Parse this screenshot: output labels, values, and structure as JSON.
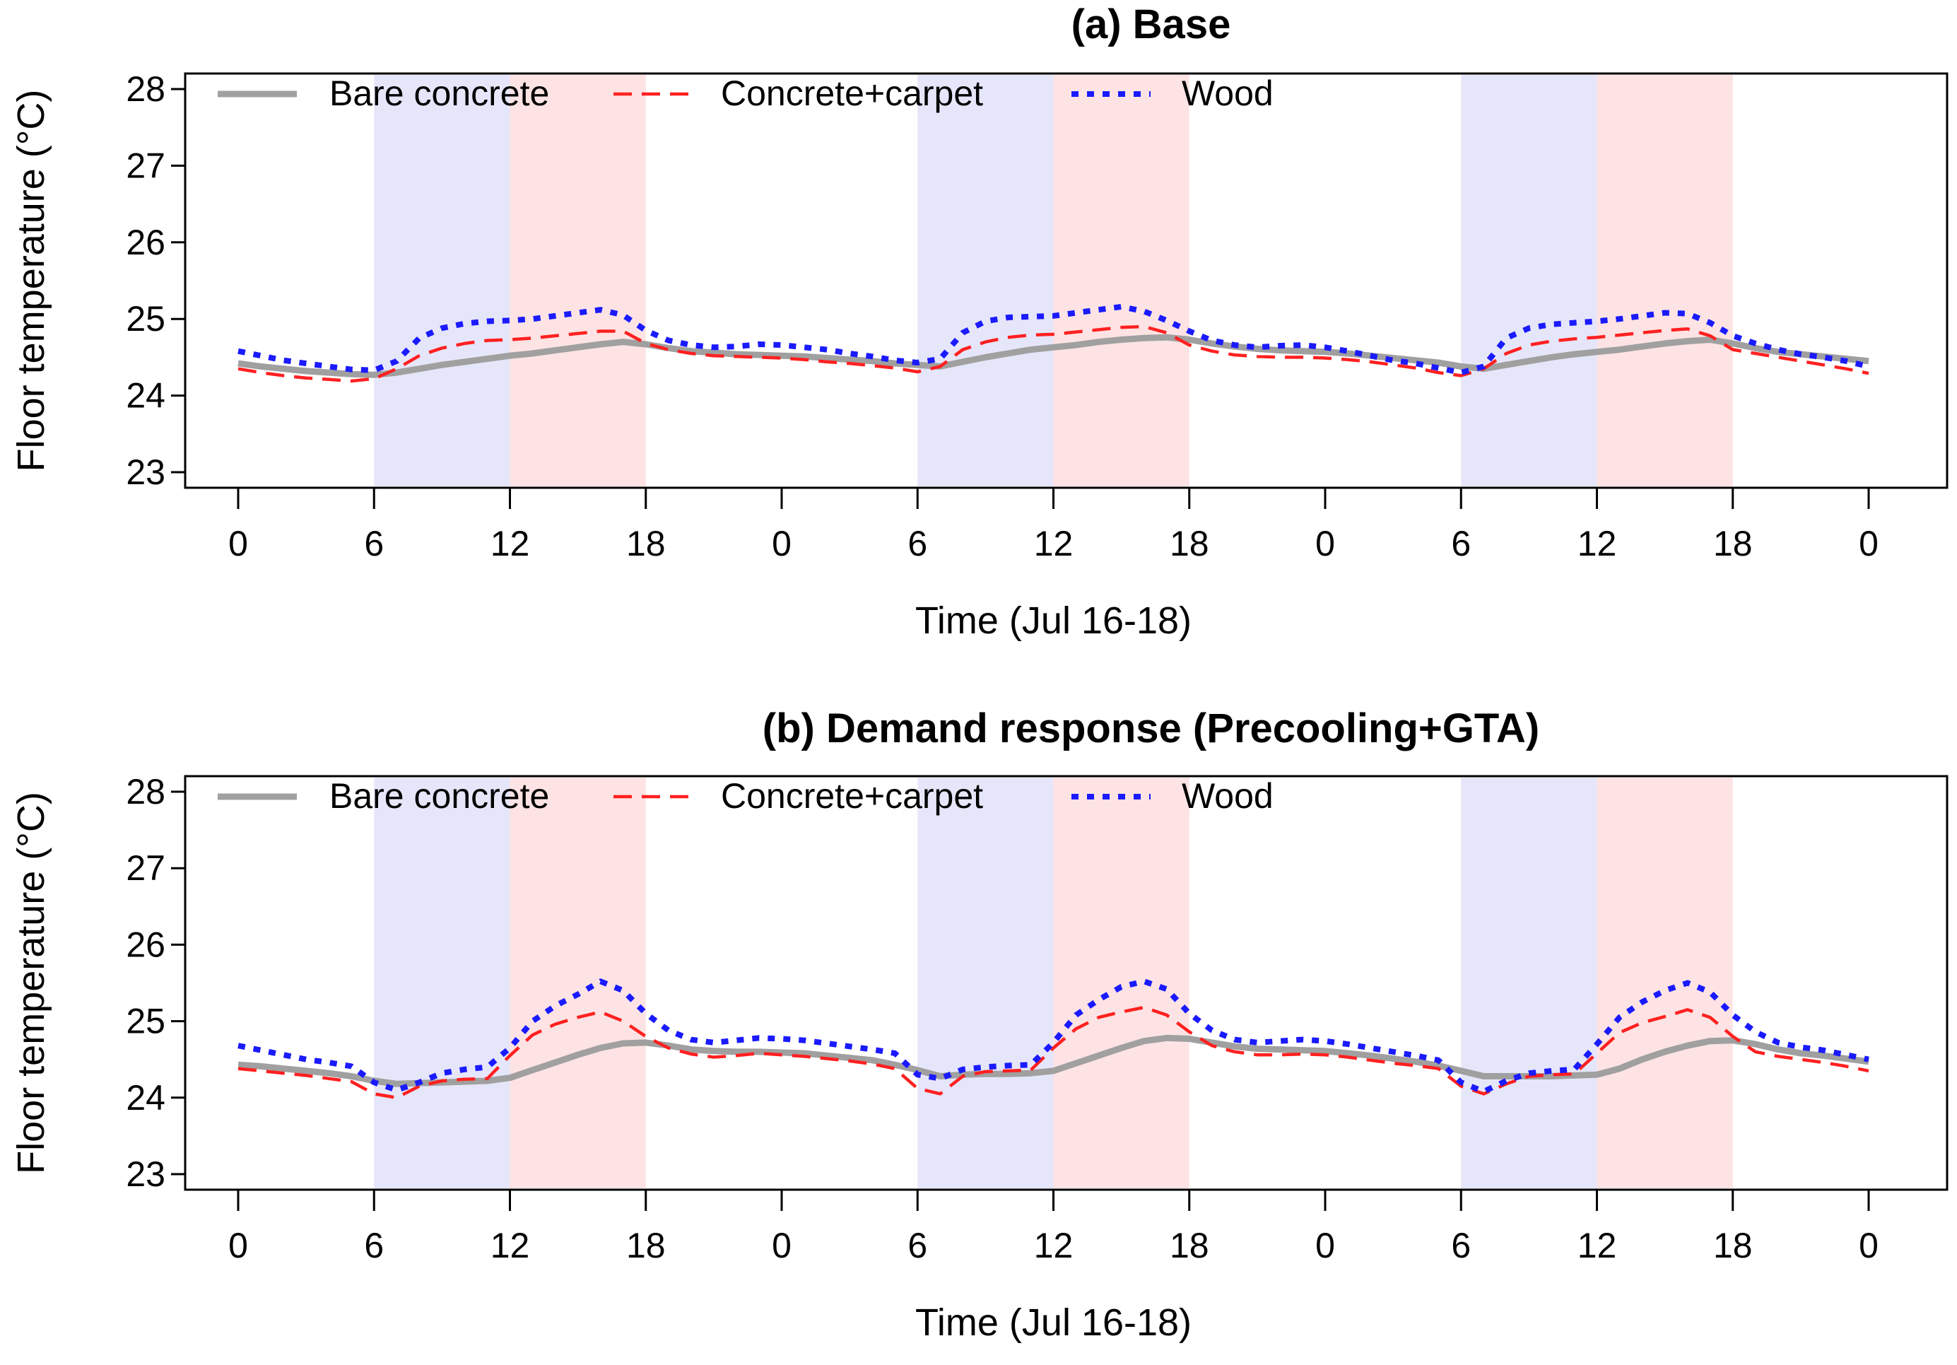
{
  "chart_data": [
    {
      "type": "line",
      "title": "(a) Base",
      "xlabel": "Time (Jul 16-18)",
      "ylabel": "Floor temperature (°C)",
      "ylim": [
        23,
        28
      ],
      "yticks": [
        "23",
        "24",
        "25",
        "26",
        "27",
        "28"
      ],
      "xlim": [
        0,
        72
      ],
      "xticks": [
        "0",
        "6",
        "12",
        "18",
        "0",
        "6",
        "12",
        "18",
        "0",
        "6",
        "12",
        "18",
        "0"
      ],
      "shaded_bands": [
        {
          "from": 6,
          "to": 12,
          "color": "#e6e6fa"
        },
        {
          "from": 12,
          "to": 18,
          "color": "#fde3e3"
        },
        {
          "from": 30,
          "to": 36,
          "color": "#e6e6fa"
        },
        {
          "from": 36,
          "to": 42,
          "color": "#fde3e3"
        },
        {
          "from": 54,
          "to": 60,
          "color": "#e6e6fa"
        },
        {
          "from": 60,
          "to": 66,
          "color": "#fde3e3"
        }
      ],
      "x": [
        0,
        1,
        2,
        3,
        4,
        5,
        6,
        7,
        8,
        9,
        10,
        11,
        12,
        13,
        14,
        15,
        16,
        17,
        18,
        19,
        20,
        21,
        22,
        23,
        24,
        25,
        26,
        27,
        28,
        29,
        30,
        31,
        32,
        33,
        34,
        35,
        36,
        37,
        38,
        39,
        40,
        41,
        42,
        43,
        44,
        45,
        46,
        47,
        48,
        49,
        50,
        51,
        52,
        53,
        54,
        55,
        56,
        57,
        58,
        59,
        60,
        61,
        62,
        63,
        64,
        65,
        66,
        67,
        68,
        69,
        70,
        71,
        72
      ],
      "series": [
        {
          "name": "Bare concrete",
          "color": "#a0a0a0",
          "style": "solid",
          "values": [
            24.42,
            24.38,
            24.35,
            24.32,
            24.3,
            24.28,
            24.27,
            24.3,
            24.35,
            24.4,
            24.44,
            24.48,
            24.52,
            24.55,
            24.59,
            24.63,
            24.67,
            24.7,
            24.67,
            24.62,
            24.58,
            24.56,
            24.54,
            24.53,
            24.52,
            24.51,
            24.49,
            24.47,
            24.45,
            24.42,
            24.4,
            24.38,
            24.44,
            24.5,
            24.55,
            24.6,
            24.63,
            24.66,
            24.7,
            24.73,
            24.75,
            24.76,
            24.73,
            24.68,
            24.64,
            24.61,
            24.59,
            24.58,
            24.57,
            24.55,
            24.52,
            24.49,
            24.46,
            24.43,
            24.38,
            24.35,
            24.4,
            24.45,
            24.5,
            24.54,
            24.57,
            24.6,
            24.64,
            24.68,
            24.71,
            24.73,
            24.68,
            24.62,
            24.57,
            24.54,
            24.51,
            24.48,
            24.45
          ]
        },
        {
          "name": "Concrete+carpet",
          "color": "#ff2020",
          "style": "dashed",
          "values": [
            24.35,
            24.3,
            24.26,
            24.23,
            24.21,
            24.19,
            24.22,
            24.35,
            24.52,
            24.62,
            24.68,
            24.72,
            24.73,
            24.75,
            24.78,
            24.81,
            24.84,
            24.84,
            24.68,
            24.6,
            24.55,
            24.52,
            24.51,
            24.5,
            24.49,
            24.47,
            24.44,
            24.42,
            24.39,
            24.36,
            24.31,
            24.38,
            24.6,
            24.7,
            24.76,
            24.79,
            24.8,
            24.83,
            24.86,
            24.89,
            24.9,
            24.82,
            24.66,
            24.58,
            24.53,
            24.51,
            24.5,
            24.5,
            24.49,
            24.47,
            24.44,
            24.4,
            24.36,
            24.3,
            24.26,
            24.35,
            24.55,
            24.66,
            24.71,
            24.74,
            24.76,
            24.79,
            24.82,
            24.85,
            24.87,
            24.78,
            24.6,
            24.55,
            24.5,
            24.45,
            24.4,
            24.35,
            24.29
          ]
        },
        {
          "name": "Wood",
          "color": "#1a1aff",
          "style": "dotted",
          "values": [
            24.58,
            24.52,
            24.46,
            24.42,
            24.38,
            24.34,
            24.33,
            24.45,
            24.75,
            24.88,
            24.94,
            24.97,
            24.98,
            25.0,
            25.04,
            25.08,
            25.12,
            25.05,
            24.85,
            24.72,
            24.66,
            24.63,
            24.64,
            24.67,
            24.66,
            24.63,
            24.6,
            24.55,
            24.51,
            24.46,
            24.43,
            24.48,
            24.82,
            24.97,
            25.02,
            25.03,
            25.04,
            25.08,
            25.12,
            25.16,
            25.1,
            24.98,
            24.84,
            24.72,
            24.66,
            24.63,
            24.65,
            24.66,
            24.63,
            24.58,
            24.52,
            24.46,
            24.42,
            24.36,
            24.3,
            24.38,
            24.75,
            24.88,
            24.93,
            24.95,
            24.97,
            25.0,
            25.04,
            25.08,
            25.07,
            24.95,
            24.78,
            24.68,
            24.6,
            24.54,
            24.5,
            24.45,
            24.38
          ]
        }
      ],
      "legend": "top-left, horizontal"
    },
    {
      "type": "line",
      "title": "(b) Demand response (Precooling+GTA)",
      "xlabel": "Time (Jul 16-18)",
      "ylabel": "Floor temperature (°C)",
      "ylim": [
        23,
        28
      ],
      "yticks": [
        "23",
        "24",
        "25",
        "26",
        "27",
        "28"
      ],
      "xlim": [
        0,
        72
      ],
      "xticks": [
        "0",
        "6",
        "12",
        "18",
        "0",
        "6",
        "12",
        "18",
        "0",
        "6",
        "12",
        "18",
        "0"
      ],
      "shaded_bands": [
        {
          "from": 6,
          "to": 12,
          "color": "#e6e6fa"
        },
        {
          "from": 12,
          "to": 18,
          "color": "#fde3e3"
        },
        {
          "from": 30,
          "to": 36,
          "color": "#e6e6fa"
        },
        {
          "from": 36,
          "to": 42,
          "color": "#fde3e3"
        },
        {
          "from": 54,
          "to": 60,
          "color": "#e6e6fa"
        },
        {
          "from": 60,
          "to": 66,
          "color": "#fde3e3"
        }
      ],
      "x": [
        0,
        1,
        2,
        3,
        4,
        5,
        6,
        7,
        8,
        9,
        10,
        11,
        12,
        13,
        14,
        15,
        16,
        17,
        18,
        19,
        20,
        21,
        22,
        23,
        24,
        25,
        26,
        27,
        28,
        29,
        30,
        31,
        32,
        33,
        34,
        35,
        36,
        37,
        38,
        39,
        40,
        41,
        42,
        43,
        44,
        45,
        46,
        47,
        48,
        49,
        50,
        51,
        52,
        53,
        54,
        55,
        56,
        57,
        58,
        59,
        60,
        61,
        62,
        63,
        64,
        65,
        66,
        67,
        68,
        69,
        70,
        71,
        72
      ],
      "series": [
        {
          "name": "Bare concrete",
          "color": "#a0a0a0",
          "style": "solid",
          "values": [
            24.43,
            24.41,
            24.38,
            24.35,
            24.32,
            24.28,
            24.22,
            24.18,
            24.19,
            24.2,
            24.21,
            24.22,
            24.26,
            24.36,
            24.46,
            24.56,
            24.65,
            24.71,
            24.72,
            24.68,
            24.63,
            24.61,
            24.6,
            24.6,
            24.59,
            24.58,
            24.55,
            24.52,
            24.49,
            24.43,
            24.36,
            24.28,
            24.3,
            24.31,
            24.31,
            24.32,
            24.35,
            24.45,
            24.55,
            24.65,
            24.74,
            24.78,
            24.77,
            24.72,
            24.67,
            24.64,
            24.63,
            24.62,
            24.61,
            24.58,
            24.55,
            24.51,
            24.47,
            24.42,
            24.35,
            24.28,
            24.28,
            24.28,
            24.28,
            24.29,
            24.3,
            24.38,
            24.5,
            24.6,
            24.68,
            24.74,
            24.75,
            24.7,
            24.63,
            24.58,
            24.55,
            24.51,
            24.47
          ]
        },
        {
          "name": "Concrete+carpet",
          "color": "#ff2020",
          "style": "dashed",
          "values": [
            24.38,
            24.35,
            24.32,
            24.29,
            24.25,
            24.21,
            24.05,
            24.0,
            24.15,
            24.22,
            24.24,
            24.25,
            24.55,
            24.82,
            24.96,
            25.05,
            25.12,
            25.0,
            24.8,
            24.65,
            24.57,
            24.53,
            24.55,
            24.58,
            24.56,
            24.54,
            24.51,
            24.48,
            24.44,
            24.38,
            24.12,
            24.05,
            24.28,
            24.34,
            24.35,
            24.36,
            24.65,
            24.9,
            25.05,
            25.12,
            25.18,
            25.08,
            24.86,
            24.68,
            24.6,
            24.56,
            24.56,
            24.57,
            24.56,
            24.53,
            24.49,
            24.45,
            24.42,
            24.38,
            24.15,
            24.05,
            24.18,
            24.28,
            24.3,
            24.31,
            24.58,
            24.85,
            24.98,
            25.06,
            25.15,
            25.05,
            24.8,
            24.6,
            24.54,
            24.5,
            24.46,
            24.41,
            24.35
          ]
        },
        {
          "name": "Wood",
          "color": "#1a1aff",
          "style": "dotted",
          "values": [
            24.68,
            24.62,
            24.56,
            24.5,
            24.46,
            24.41,
            24.2,
            24.1,
            24.2,
            24.32,
            24.37,
            24.4,
            24.65,
            25.0,
            25.2,
            25.35,
            25.52,
            25.4,
            25.1,
            24.88,
            24.76,
            24.72,
            24.75,
            24.78,
            24.77,
            24.75,
            24.71,
            24.67,
            24.63,
            24.58,
            24.3,
            24.25,
            24.37,
            24.4,
            24.42,
            24.43,
            24.72,
            25.08,
            25.28,
            25.45,
            25.52,
            25.42,
            25.1,
            24.88,
            24.76,
            24.72,
            24.74,
            24.76,
            24.74,
            24.7,
            24.65,
            24.6,
            24.55,
            24.49,
            24.2,
            24.08,
            24.22,
            24.32,
            24.35,
            24.37,
            24.7,
            25.05,
            25.25,
            25.4,
            25.5,
            25.38,
            25.08,
            24.86,
            24.72,
            24.66,
            24.62,
            24.56,
            24.5
          ]
        }
      ],
      "legend": "top-left, horizontal"
    }
  ]
}
